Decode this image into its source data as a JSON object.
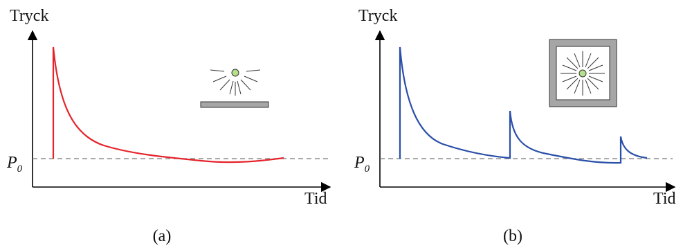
{
  "panels": [
    {
      "id": "a",
      "y_label": "Tryck",
      "x_label": "Tid",
      "baseline_label": "P",
      "baseline_subscript": "0",
      "caption": "(a)",
      "curve_color": "#e5232b",
      "icon": "open-blast-icon"
    },
    {
      "id": "b",
      "y_label": "Tryck",
      "x_label": "Tid",
      "baseline_label": "P",
      "baseline_subscript": "0",
      "caption": "(b)",
      "curve_color": "#2a4fa8",
      "icon": "enclosed-blast-icon"
    }
  ],
  "colors": {
    "axis": "#000000",
    "baseline_dash": "#777777",
    "icon_gray": "#a6a6a6",
    "icon_center": "#b7e08c"
  }
}
